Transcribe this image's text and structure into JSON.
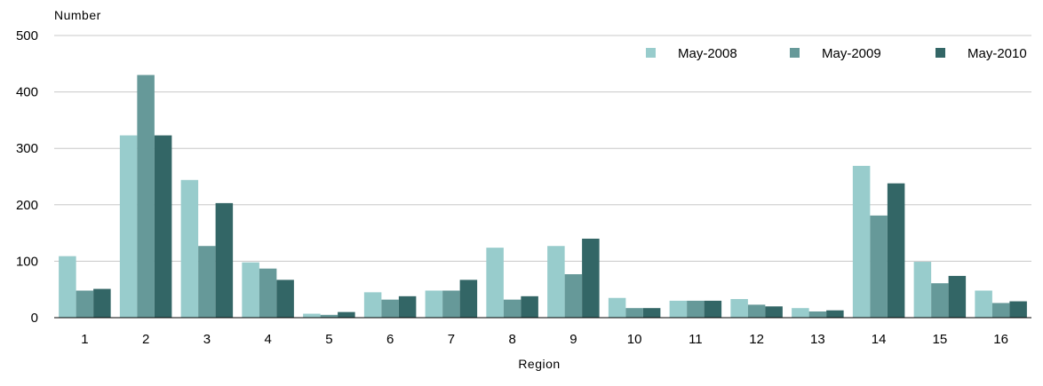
{
  "chart_data": {
    "type": "bar",
    "title": "",
    "ylabel": "Number",
    "xlabel": "Region",
    "ylim": [
      0,
      500
    ],
    "yticks": [
      0,
      100,
      200,
      300,
      400,
      500
    ],
    "grid": true,
    "legend_position": "top-right",
    "categories": [
      "1",
      "2",
      "3",
      "4",
      "5",
      "6",
      "7",
      "8",
      "9",
      "10",
      "11",
      "12",
      "13",
      "14",
      "15",
      "16"
    ],
    "series": [
      {
        "name": "May-2008",
        "color": "#98cccc",
        "values": [
          109,
          323,
          244,
          98,
          7,
          45,
          48,
          124,
          127,
          35,
          30,
          33,
          17,
          269,
          99,
          48
        ]
      },
      {
        "name": "May-2009",
        "color": "#669999",
        "values": [
          48,
          430,
          127,
          87,
          5,
          32,
          48,
          32,
          77,
          17,
          30,
          23,
          11,
          181,
          61,
          26
        ]
      },
      {
        "name": "May-2010",
        "color": "#336666",
        "values": [
          51,
          323,
          203,
          67,
          10,
          38,
          67,
          38,
          140,
          17,
          30,
          20,
          13,
          238,
          74,
          29
        ]
      }
    ]
  }
}
